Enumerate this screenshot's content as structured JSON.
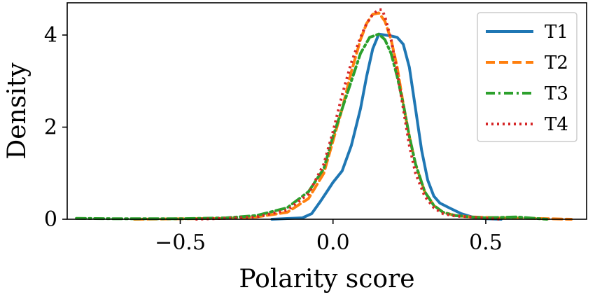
{
  "chart_data": {
    "type": "line",
    "title": "",
    "xlabel": "Polarity score",
    "ylabel": "Density",
    "xlim": [
      -0.87,
      0.83
    ],
    "ylim": [
      0,
      4.7
    ],
    "xticks": [
      {
        "value": -0.5,
        "label": "−0.5"
      },
      {
        "value": 0.0,
        "label": "0.0"
      },
      {
        "value": 0.5,
        "label": "0.5"
      }
    ],
    "yticks": [
      {
        "value": 0,
        "label": "0"
      },
      {
        "value": 2,
        "label": "2"
      },
      {
        "value": 4,
        "label": "4"
      }
    ],
    "grid": false,
    "legend_position": "top-right",
    "series": [
      {
        "name": "T1",
        "color": "#1f77b4",
        "linestyle": "solid",
        "x": [
          -0.2,
          -0.1,
          -0.07,
          -0.04,
          -0.02,
          0.0,
          0.03,
          0.06,
          0.09,
          0.11,
          0.13,
          0.15,
          0.17,
          0.19,
          0.21,
          0.23,
          0.25,
          0.27,
          0.29,
          0.31,
          0.33,
          0.35,
          0.38,
          0.42,
          0.46,
          0.5,
          0.55
        ],
        "y": [
          0.0,
          0.03,
          0.12,
          0.4,
          0.6,
          0.8,
          1.05,
          1.6,
          2.4,
          3.1,
          3.7,
          4.02,
          4.0,
          3.98,
          3.95,
          3.8,
          3.3,
          2.4,
          1.5,
          0.85,
          0.5,
          0.35,
          0.25,
          0.12,
          0.04,
          0.01,
          0.0
        ]
      },
      {
        "name": "T2",
        "color": "#ff7f0e",
        "linestyle": "dashed",
        "x": [
          -0.65,
          -0.5,
          -0.35,
          -0.25,
          -0.15,
          -0.08,
          -0.03,
          0.0,
          0.03,
          0.06,
          0.09,
          0.11,
          0.13,
          0.15,
          0.17,
          0.19,
          0.21,
          0.23,
          0.25,
          0.27,
          0.3,
          0.33,
          0.36,
          0.4,
          0.45,
          0.55,
          0.65,
          0.78
        ],
        "y": [
          0.0,
          0.01,
          0.02,
          0.05,
          0.15,
          0.45,
          1.0,
          1.7,
          2.4,
          3.2,
          3.9,
          4.25,
          4.45,
          4.48,
          4.3,
          3.9,
          3.3,
          2.5,
          1.8,
          1.2,
          0.6,
          0.3,
          0.15,
          0.08,
          0.05,
          0.03,
          0.02,
          0.0
        ]
      },
      {
        "name": "T3",
        "color": "#2ca02c",
        "linestyle": "dashdot",
        "x": [
          -0.84,
          -0.7,
          -0.5,
          -0.35,
          -0.25,
          -0.15,
          -0.08,
          -0.03,
          0.0,
          0.03,
          0.06,
          0.09,
          0.12,
          0.15,
          0.17,
          0.19,
          0.21,
          0.23,
          0.25,
          0.27,
          0.3,
          0.33,
          0.36,
          0.4,
          0.45,
          0.5,
          0.6,
          0.7
        ],
        "y": [
          0.02,
          0.01,
          0.01,
          0.03,
          0.08,
          0.25,
          0.6,
          1.1,
          1.8,
          2.4,
          3.0,
          3.6,
          3.95,
          4.02,
          3.9,
          3.6,
          3.1,
          2.5,
          1.8,
          1.2,
          0.6,
          0.3,
          0.15,
          0.08,
          0.05,
          0.03,
          0.05,
          0.0
        ]
      },
      {
        "name": "T4",
        "color": "#d62728",
        "linestyle": "dotted",
        "x": [
          -0.45,
          -0.35,
          -0.25,
          -0.15,
          -0.08,
          -0.03,
          0.0,
          0.03,
          0.06,
          0.09,
          0.11,
          0.13,
          0.15,
          0.16,
          0.17,
          0.19,
          0.21,
          0.23,
          0.25,
          0.27,
          0.3,
          0.33,
          0.36,
          0.4,
          0.45,
          0.5,
          0.55
        ],
        "y": [
          0.0,
          0.02,
          0.05,
          0.2,
          0.55,
          1.2,
          1.9,
          2.7,
          3.4,
          3.95,
          4.25,
          4.45,
          4.55,
          4.55,
          4.4,
          3.9,
          3.2,
          2.4,
          1.6,
          1.0,
          0.5,
          0.25,
          0.12,
          0.07,
          0.05,
          0.02,
          0.0
        ]
      }
    ]
  }
}
